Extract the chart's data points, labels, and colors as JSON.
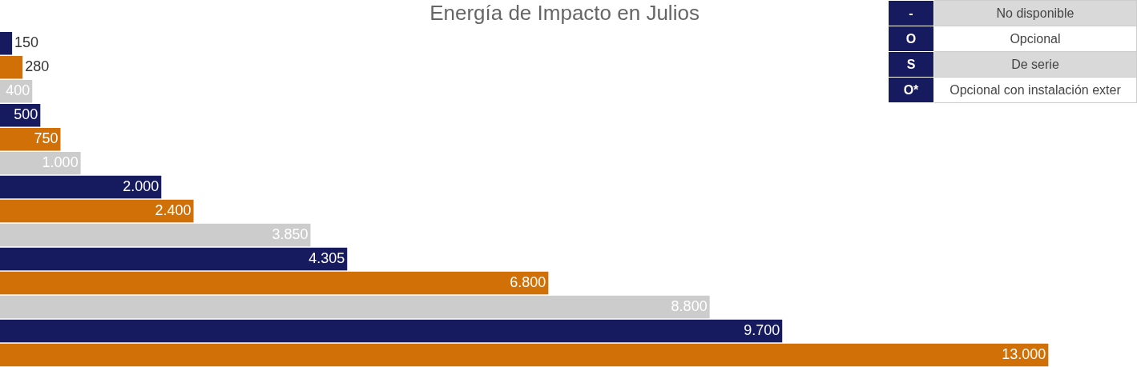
{
  "chart_data": {
    "type": "bar",
    "orientation": "horizontal",
    "title": "Energía de Impacto en Julios",
    "categories": [
      null,
      null,
      null,
      null,
      null,
      null,
      null,
      null,
      null,
      null,
      null,
      null,
      null,
      null
    ],
    "values": [
      150,
      280,
      400,
      500,
      750,
      1000,
      2000,
      2400,
      3850,
      4305,
      6800,
      8800,
      9700,
      13000
    ],
    "colors": [
      "#161a5e",
      "#d07006",
      "#cccccc",
      "#161a5e",
      "#d07006",
      "#cccccc",
      "#161a5e",
      "#d07006",
      "#cccccc",
      "#161a5e",
      "#d07006",
      "#cccccc",
      "#161a5e",
      "#d07006"
    ],
    "value_labels": [
      "150",
      "280",
      "400",
      "500",
      "750",
      "1.000",
      "2.000",
      "2.400",
      "3.850",
      "4.305",
      "6.800",
      "8.800",
      "9.700",
      "13.000"
    ],
    "tick_labels": false,
    "legend": false,
    "annotations": [
      "-",
      "No disponible",
      "O",
      "Opcional",
      "S",
      "De serie",
      "O*",
      "Opcional con instalación exter"
    ]
  }
}
